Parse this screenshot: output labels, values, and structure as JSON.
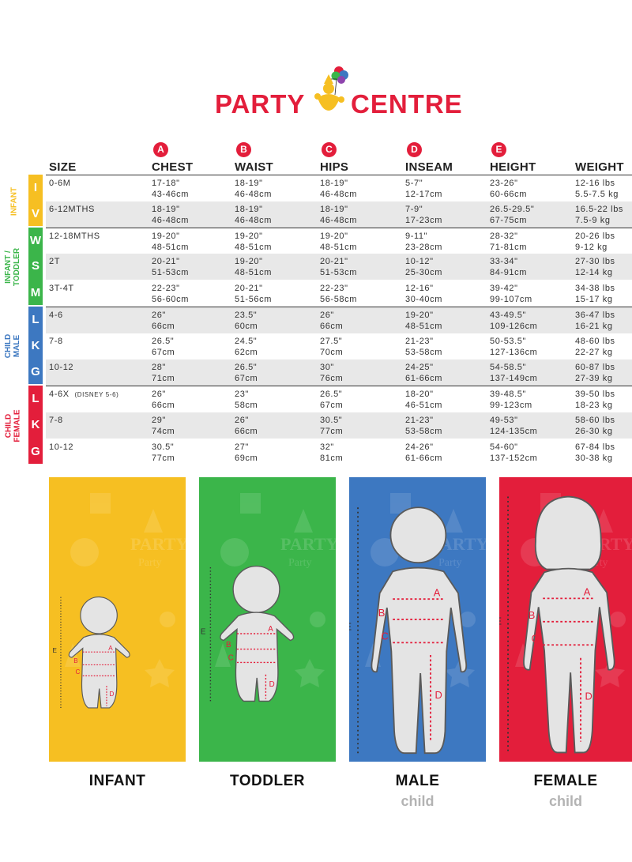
{
  "brand": {
    "word1": "PARTY",
    "word2": "CENTRE"
  },
  "colors": {
    "red": "#e31e3b",
    "yellow": "#f6bf22",
    "green": "#3bb54a",
    "blue": "#3d78c1"
  },
  "columns": [
    {
      "key": "size",
      "label": "SIZE",
      "badge": ""
    },
    {
      "key": "chest",
      "label": "CHEST",
      "badge": "A"
    },
    {
      "key": "waist",
      "label": "WAIST",
      "badge": "B"
    },
    {
      "key": "hips",
      "label": "HIPS",
      "badge": "C"
    },
    {
      "key": "inseam",
      "label": "INSEAM",
      "badge": "D"
    },
    {
      "key": "height",
      "label": "HEIGHT",
      "badge": "E"
    },
    {
      "key": "weight",
      "label": "WEIGHT",
      "badge": ""
    }
  ],
  "groups": [
    {
      "label_lines": [
        "INFANT"
      ],
      "color": "#f6bf22",
      "letters": [
        "I",
        "V"
      ]
    },
    {
      "label_lines": [
        "INFANT /",
        "TODDLER"
      ],
      "color": "#3bb54a",
      "letters": [
        "W",
        "S",
        "M"
      ]
    },
    {
      "label_lines": [
        "CHILD",
        "MALE"
      ],
      "color": "#3d78c1",
      "letters": [
        "L",
        "K",
        "G"
      ]
    },
    {
      "label_lines": [
        "CHILD",
        "FEMALE"
      ],
      "color": "#e31e3b",
      "letters": [
        "L",
        "K",
        "G"
      ]
    }
  ],
  "rows": [
    {
      "size": "0-6M",
      "size_note": "",
      "chest": [
        "17-18\"",
        "43-46cm"
      ],
      "waist": [
        "18-19\"",
        "46-48cm"
      ],
      "hips": [
        "18-19\"",
        "46-48cm"
      ],
      "inseam": [
        "5-7\"",
        "12-17cm"
      ],
      "height": [
        "23-26\"",
        "60-66cm"
      ],
      "weight": [
        "12-16 lbs",
        "5.5-7.5 kg"
      ]
    },
    {
      "size": "6-12MTHS",
      "size_note": "",
      "chest": [
        "18-19\"",
        "46-48cm"
      ],
      "waist": [
        "18-19\"",
        "46-48cm"
      ],
      "hips": [
        "18-19\"",
        "46-48cm"
      ],
      "inseam": [
        "7-9\"",
        "17-23cm"
      ],
      "height": [
        "26.5-29.5\"",
        "67-75cm"
      ],
      "weight": [
        "16.5-22 lbs",
        "7.5-9 kg"
      ]
    },
    {
      "size": "12-18MTHS",
      "size_note": "",
      "chest": [
        "19-20\"",
        "48-51cm"
      ],
      "waist": [
        "19-20\"",
        "48-51cm"
      ],
      "hips": [
        "19-20\"",
        "48-51cm"
      ],
      "inseam": [
        "9-11\"",
        "23-28cm"
      ],
      "height": [
        "28-32\"",
        "71-81cm"
      ],
      "weight": [
        "20-26 lbs",
        "9-12 kg"
      ]
    },
    {
      "size": "2T",
      "size_note": "",
      "chest": [
        "20-21\"",
        "51-53cm"
      ],
      "waist": [
        "19-20\"",
        "48-51cm"
      ],
      "hips": [
        "20-21\"",
        "51-53cm"
      ],
      "inseam": [
        "10-12\"",
        "25-30cm"
      ],
      "height": [
        "33-34\"",
        "84-91cm"
      ],
      "weight": [
        "27-30 lbs",
        "12-14 kg"
      ]
    },
    {
      "size": "3T-4T",
      "size_note": "",
      "chest": [
        "22-23\"",
        "56-60cm"
      ],
      "waist": [
        "20-21\"",
        "51-56cm"
      ],
      "hips": [
        "22-23\"",
        "56-58cm"
      ],
      "inseam": [
        "12-16\"",
        "30-40cm"
      ],
      "height": [
        "39-42\"",
        "99-107cm"
      ],
      "weight": [
        "34-38 lbs",
        "15-17 kg"
      ]
    },
    {
      "size": "4-6",
      "size_note": "",
      "chest": [
        "26\"",
        "66cm"
      ],
      "waist": [
        "23.5\"",
        "60cm"
      ],
      "hips": [
        "26\"",
        "66cm"
      ],
      "inseam": [
        "19-20\"",
        "48-51cm"
      ],
      "height": [
        "43-49.5\"",
        "109-126cm"
      ],
      "weight": [
        "36-47 lbs",
        "16-21 kg"
      ]
    },
    {
      "size": "7-8",
      "size_note": "",
      "chest": [
        "26.5\"",
        "67cm"
      ],
      "waist": [
        "24.5\"",
        "62cm"
      ],
      "hips": [
        "27.5\"",
        "70cm"
      ],
      "inseam": [
        "21-23\"",
        "53-58cm"
      ],
      "height": [
        "50-53.5\"",
        "127-136cm"
      ],
      "weight": [
        "48-60 lbs",
        "22-27 kg"
      ]
    },
    {
      "size": "10-12",
      "size_note": "",
      "chest": [
        "28\"",
        "71cm"
      ],
      "waist": [
        "26.5\"",
        "67cm"
      ],
      "hips": [
        "30\"",
        "76cm"
      ],
      "inseam": [
        "24-25\"",
        "61-66cm"
      ],
      "height": [
        "54-58.5\"",
        "137-149cm"
      ],
      "weight": [
        "60-87 lbs",
        "27-39 kg"
      ]
    },
    {
      "size": "4-6X",
      "size_note": "(DISNEY 5-6)",
      "chest": [
        "26\"",
        "66cm"
      ],
      "waist": [
        "23\"",
        "58cm"
      ],
      "hips": [
        "26.5\"",
        "67cm"
      ],
      "inseam": [
        "18-20\"",
        "46-51cm"
      ],
      "height": [
        "39-48.5\"",
        "99-123cm"
      ],
      "weight": [
        "39-50 lbs",
        "18-23 kg"
      ]
    },
    {
      "size": "7-8",
      "size_note": "",
      "chest": [
        "29\"",
        "74cm"
      ],
      "waist": [
        "26\"",
        "66cm"
      ],
      "hips": [
        "30.5\"",
        "77cm"
      ],
      "inseam": [
        "21-23\"",
        "53-58cm"
      ],
      "height": [
        "49-53\"",
        "124-135cm"
      ],
      "weight": [
        "58-60 lbs",
        "26-30 kg"
      ]
    },
    {
      "size": "10-12",
      "size_note": "",
      "chest": [
        "30.5\"",
        "77cm"
      ],
      "waist": [
        "27\"",
        "69cm"
      ],
      "hips": [
        "32\"",
        "81cm"
      ],
      "inseam": [
        "24-26\"",
        "61-66cm"
      ],
      "height": [
        "54-60\"",
        "137-152cm"
      ],
      "weight": [
        "67-84 lbs",
        "30-38 kg"
      ]
    }
  ],
  "panels": [
    {
      "label": "INFANT",
      "sub": "",
      "color": "#f6bf22"
    },
    {
      "label": "TODDLER",
      "sub": "",
      "color": "#3bb54a"
    },
    {
      "label": "MALE",
      "sub": "child",
      "color": "#3d78c1"
    },
    {
      "label": "FEMALE",
      "sub": "child",
      "color": "#e31e3b"
    }
  ],
  "panel_bg_words": [
    "PARTY",
    "Party"
  ],
  "measure_letters": [
    "A",
    "B",
    "C",
    "D",
    "E"
  ]
}
